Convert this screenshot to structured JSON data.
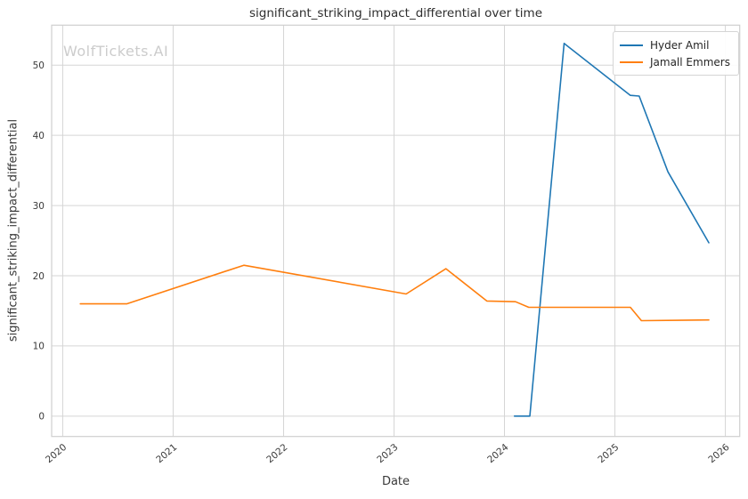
{
  "watermark": {
    "text": "WolfTickets.AI",
    "color": "#cccccc"
  },
  "chart_data": {
    "type": "line",
    "title": "significant_striking_impact_differential over time",
    "xlabel": "Date",
    "ylabel": "significant_striking_impact_differential",
    "x_ticks": [
      2020,
      2021,
      2022,
      2023,
      2024,
      2025,
      2026
    ],
    "y_ticks": [
      0,
      10,
      20,
      30,
      40,
      50
    ],
    "xlim": [
      2019.9,
      2026.13
    ],
    "ylim": [
      -2.9,
      55.7
    ],
    "grid": true,
    "grid_color": "#d5d5d5",
    "spine_color": "#cfcfcf",
    "tick_label_color": "#3a3a3a",
    "legend_position": "upper right",
    "series": [
      {
        "name": "Hyder Amil",
        "color": "#1f77b4",
        "points": [
          [
            2024.09,
            0
          ],
          [
            2024.23,
            0
          ],
          [
            2024.54,
            53.1
          ],
          [
            2025.14,
            45.7
          ],
          [
            2025.22,
            45.6
          ],
          [
            2025.48,
            34.8
          ],
          [
            2025.85,
            24.7
          ]
        ]
      },
      {
        "name": "Jamall Emmers",
        "color": "#ff7f0e",
        "points": [
          [
            2020.16,
            16.0
          ],
          [
            2020.58,
            16.0
          ],
          [
            2021.64,
            21.5
          ],
          [
            2023.11,
            17.4
          ],
          [
            2023.47,
            21.0
          ],
          [
            2023.84,
            16.4
          ],
          [
            2024.1,
            16.3
          ],
          [
            2024.22,
            15.5
          ],
          [
            2025.14,
            15.5
          ],
          [
            2025.24,
            13.6
          ],
          [
            2025.85,
            13.7
          ]
        ]
      }
    ]
  }
}
